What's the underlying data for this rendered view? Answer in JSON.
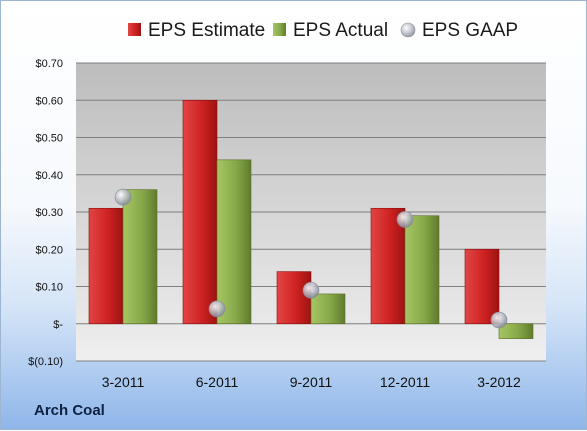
{
  "company": "Arch Coal",
  "legend": [
    {
      "label": "EPS Estimate",
      "icon": "square",
      "color": "#d22a2a"
    },
    {
      "label": "EPS Actual",
      "icon": "square",
      "color": "#8fb045"
    },
    {
      "label": "EPS GAAP",
      "icon": "circle",
      "color": "#b0b5c2"
    }
  ],
  "chart_data": {
    "type": "bar",
    "categories": [
      "3-2011",
      "6-2011",
      "9-2011",
      "12-2011",
      "3-2012"
    ],
    "series": [
      {
        "name": "EPS Estimate",
        "type": "bar",
        "values": [
          0.31,
          0.6,
          0.14,
          0.31,
          0.2
        ]
      },
      {
        "name": "EPS Actual",
        "type": "bar",
        "values": [
          0.36,
          0.44,
          0.08,
          0.29,
          -0.04
        ]
      },
      {
        "name": "EPS GAAP",
        "type": "scatter",
        "values": [
          0.34,
          0.04,
          0.09,
          0.28,
          0.01
        ]
      }
    ],
    "yticks": [
      0.7,
      0.6,
      0.5,
      0.4,
      0.3,
      0.2,
      0.1,
      0,
      -0.1
    ],
    "ytick_labels": [
      "$0.70",
      "$0.60",
      "$0.50",
      "$0.40",
      "$0.30",
      "$0.20",
      "$0.10",
      "$-",
      "$(0.10)"
    ],
    "ylim": [
      -0.1,
      0.7
    ],
    "legend_position": "top",
    "grid": true
  }
}
